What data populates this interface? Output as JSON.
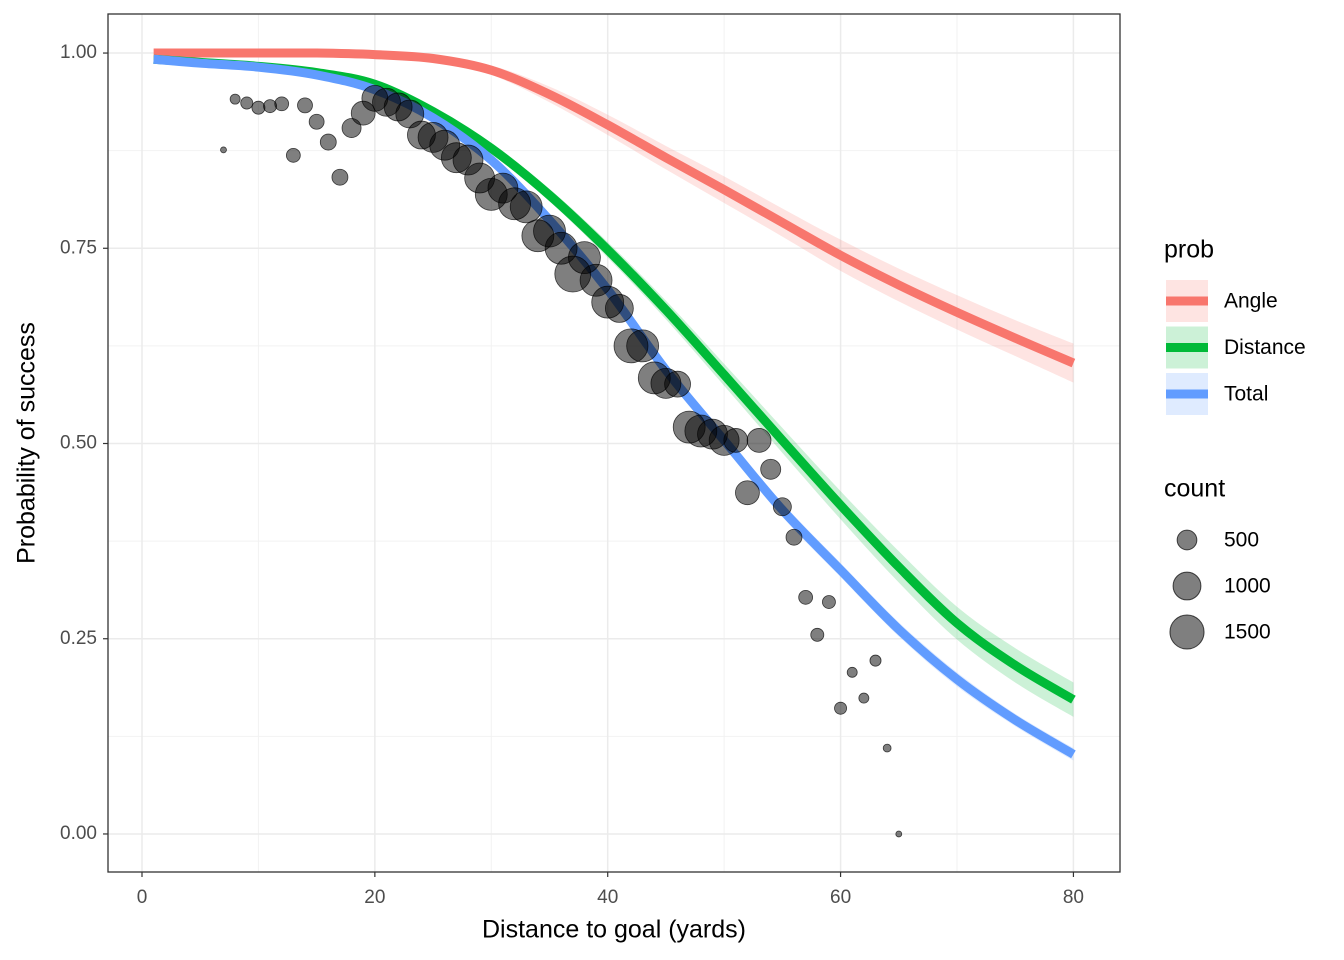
{
  "chart_data": {
    "type": "line",
    "x_label": "Distance to goal (yards)",
    "y_label": "Probability of success",
    "legend_title": "prob",
    "x": [
      1,
      5,
      10,
      15,
      20,
      25,
      30,
      35,
      40,
      45,
      50,
      55,
      60,
      65,
      70,
      75,
      80
    ],
    "series": [
      {
        "name": "Angle",
        "color": "#F8766D",
        "values": [
          1.0,
          1.0,
          1.0,
          1.0,
          0.998,
          0.993,
          0.978,
          0.947,
          0.908,
          0.866,
          0.825,
          0.783,
          0.741,
          0.703,
          0.668,
          0.635,
          0.603
        ],
        "upper": [
          1.0,
          1.0,
          1.0,
          1.0,
          0.999,
          0.996,
          0.984,
          0.957,
          0.921,
          0.881,
          0.842,
          0.801,
          0.761,
          0.724,
          0.69,
          0.658,
          0.628
        ],
        "lower": [
          0.999,
          0.999,
          0.999,
          0.999,
          0.997,
          0.99,
          0.972,
          0.937,
          0.895,
          0.851,
          0.808,
          0.765,
          0.721,
          0.682,
          0.646,
          0.612,
          0.578
        ]
      },
      {
        "name": "Distance",
        "color": "#00BA38",
        "values": [
          0.992,
          0.988,
          0.983,
          0.975,
          0.96,
          0.925,
          0.878,
          0.818,
          0.748,
          0.671,
          0.588,
          0.504,
          0.421,
          0.342,
          0.27,
          0.216,
          0.172
        ],
        "upper": [
          0.994,
          0.99,
          0.985,
          0.977,
          0.962,
          0.929,
          0.884,
          0.826,
          0.758,
          0.683,
          0.602,
          0.52,
          0.439,
          0.362,
          0.291,
          0.238,
          0.194
        ],
        "lower": [
          0.99,
          0.986,
          0.981,
          0.973,
          0.958,
          0.921,
          0.872,
          0.81,
          0.738,
          0.659,
          0.574,
          0.488,
          0.403,
          0.322,
          0.249,
          0.194,
          0.15
        ]
      },
      {
        "name": "Total",
        "color": "#619CFF",
        "values": [
          0.992,
          0.987,
          0.982,
          0.972,
          0.953,
          0.917,
          0.863,
          0.786,
          0.697,
          0.594,
          0.504,
          0.415,
          0.338,
          0.262,
          0.198,
          0.146,
          0.102
        ],
        "upper": [
          0.995,
          0.99,
          0.985,
          0.975,
          0.956,
          0.921,
          0.868,
          0.792,
          0.704,
          0.602,
          0.512,
          0.424,
          0.347,
          0.271,
          0.207,
          0.154,
          0.11
        ],
        "lower": [
          0.989,
          0.984,
          0.979,
          0.969,
          0.95,
          0.913,
          0.858,
          0.78,
          0.69,
          0.586,
          0.496,
          0.406,
          0.329,
          0.253,
          0.189,
          0.138,
          0.094
        ]
      }
    ],
    "scatter": {
      "type": "scatter",
      "color": "#000000",
      "size_title": "count",
      "size_breaks": [
        500,
        1000,
        1500
      ],
      "x": [
        7,
        8,
        9,
        10,
        11,
        12,
        13,
        14,
        15,
        16,
        17,
        18,
        19,
        20,
        21,
        22,
        23,
        24,
        25,
        26,
        27,
        28,
        29,
        30,
        31,
        32,
        33,
        34,
        35,
        36,
        37,
        38,
        39,
        40,
        41,
        42,
        43,
        44,
        45,
        46,
        47,
        48,
        49,
        50,
        51,
        52,
        53,
        54,
        55,
        56,
        57,
        58,
        59,
        60,
        61,
        62,
        63,
        64,
        65
      ],
      "values": [
        0.876,
        0.941,
        0.936,
        0.93,
        0.932,
        0.935,
        0.869,
        0.933,
        0.912,
        0.886,
        0.841,
        0.904,
        0.923,
        0.942,
        0.937,
        0.931,
        0.922,
        0.895,
        0.892,
        0.882,
        0.866,
        0.863,
        0.84,
        0.819,
        0.827,
        0.807,
        0.803,
        0.766,
        0.772,
        0.75,
        0.717,
        0.738,
        0.709,
        0.681,
        0.673,
        0.625,
        0.625,
        0.584,
        0.577,
        0.576,
        0.521,
        0.516,
        0.512,
        0.504,
        0.504,
        0.437,
        0.504,
        0.467,
        0.419,
        0.38,
        0.303,
        0.255,
        0.297,
        0.161,
        0.207,
        0.174,
        0.222,
        0.11,
        0.0
      ],
      "sizes": [
        46,
        130,
        190,
        220,
        220,
        250,
        250,
        290,
        290,
        330,
        330,
        470,
        740,
        870,
        1010,
        1010,
        1010,
        1010,
        1160,
        1160,
        1160,
        1160,
        1160,
        1320,
        1160,
        1320,
        1320,
        1320,
        1320,
        1320,
        1670,
        1320,
        1320,
        1320,
        1010,
        1490,
        1320,
        1320,
        1160,
        870,
        1320,
        1320,
        1160,
        1160,
        740,
        740,
        740,
        520,
        420,
        330,
        250,
        220,
        220,
        190,
        130,
        130,
        160,
        80,
        46
      ]
    },
    "xlim": [
      -2.92,
      84.0
    ],
    "ylim": [
      -0.0487,
      1.05
    ],
    "xticks": [
      0,
      20,
      40,
      60,
      80
    ],
    "yticks": [
      {
        "value": 0,
        "label": "0.00"
      },
      {
        "value": 0.25,
        "label": "0.25"
      },
      {
        "value": 0.5,
        "label": "0.50"
      },
      {
        "value": 0.75,
        "label": "0.75"
      },
      {
        "value": 1,
        "label": "1.00"
      }
    ],
    "x_minor": [
      10,
      30,
      50,
      70
    ],
    "y_minor": [
      0.125,
      0.375,
      0.625,
      0.875
    ],
    "grid": true,
    "legend_position": "right"
  }
}
